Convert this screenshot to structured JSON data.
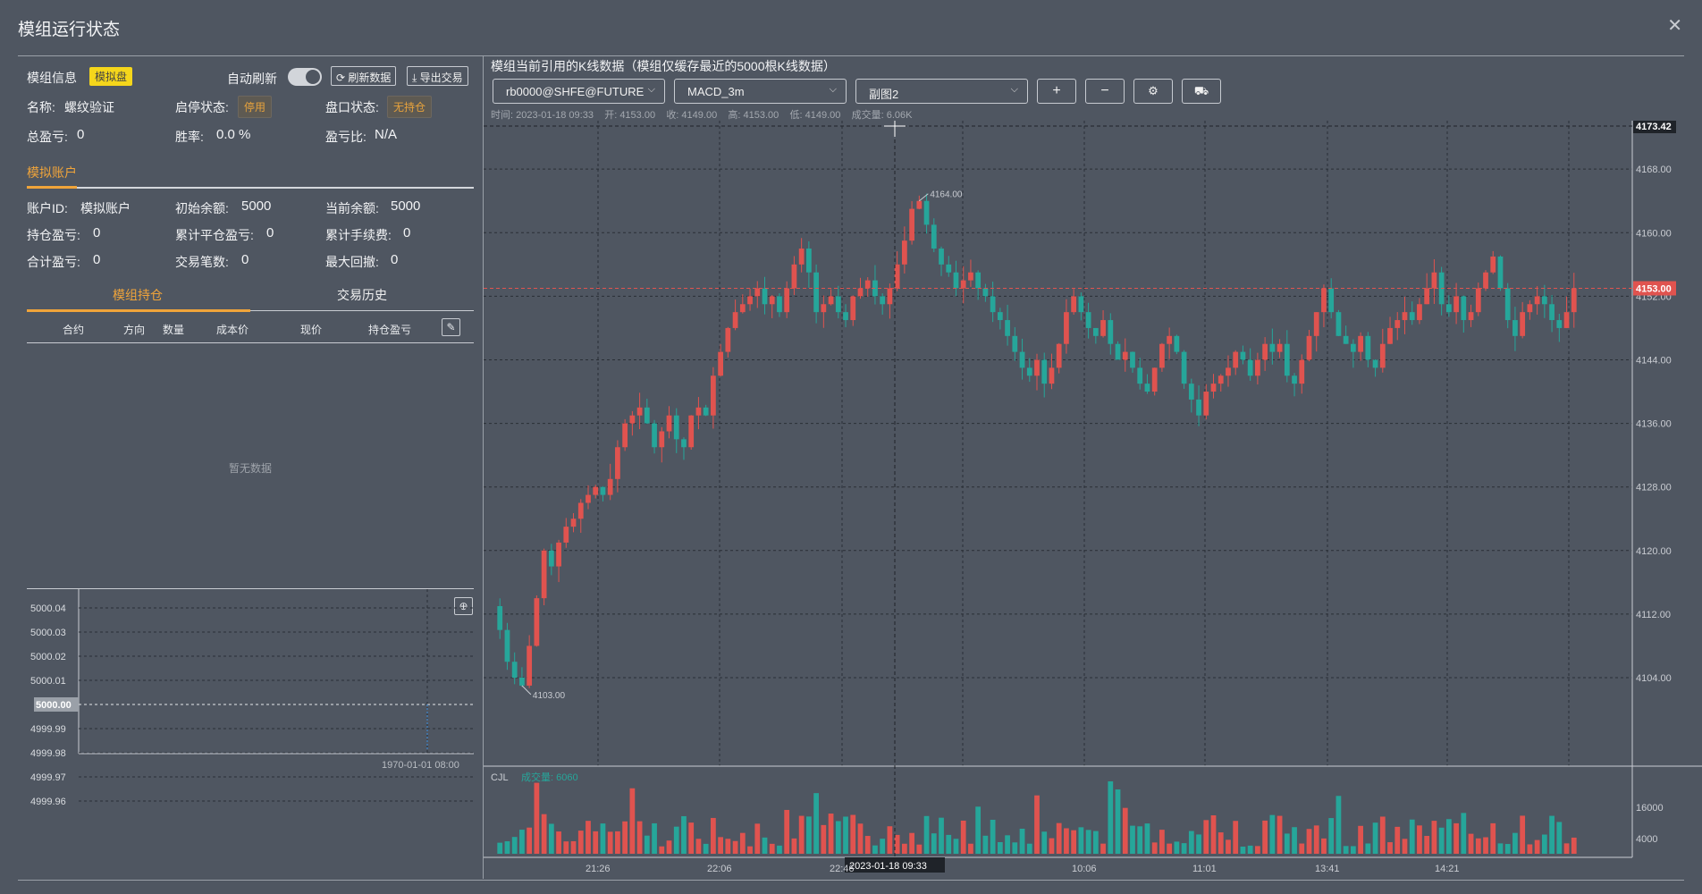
{
  "title": "模组运行状态",
  "module_info": {
    "label": "模组信息",
    "mode_badge": "模拟盘",
    "auto_refresh_label": "自动刷新",
    "refresh_btn": "刷新数据",
    "export_btn": "导出交易",
    "name_label": "名称:",
    "name_value": "螺纹验证",
    "start_stop_label": "启停状态:",
    "start_stop_value": "停用",
    "market_label": "盘口状态:",
    "market_value": "无持仓",
    "total_pnl_label": "总盈亏:",
    "total_pnl_value": "0",
    "winrate_label": "胜率:",
    "winrate_value": "0.0 %",
    "pnl_ratio_label": "盈亏比:",
    "pnl_ratio_value": "N/A"
  },
  "account": {
    "tab": "模拟账户",
    "id_label": "账户ID:",
    "id_value": "模拟账户",
    "init_label": "初始余额:",
    "init_value": "5000",
    "cur_label": "当前余额:",
    "cur_value": "5000",
    "pos_pnl_label": "持仓盈亏:",
    "pos_pnl_value": "0",
    "close_pnl_label": "累计平仓盈亏:",
    "close_pnl_value": "0",
    "fee_label": "累计手续费:",
    "fee_value": "0",
    "sum_pnl_label": "合计盈亏:",
    "sum_pnl_value": "0",
    "trades_label": "交易笔数:",
    "trades_value": "0",
    "drawdown_label": "最大回撤:",
    "drawdown_value": "0"
  },
  "tabs": {
    "positions": "模组持仓",
    "history": "交易历史"
  },
  "table": {
    "headers": [
      "合约",
      "方向",
      "数量",
      "成本价",
      "现价",
      "持仓盈亏"
    ],
    "empty": "暂无数据"
  },
  "equity_chart": {
    "y_ticks": [
      "5000.04",
      "5000.03",
      "5000.02",
      "5000.01",
      "5000.00",
      "4999.99",
      "4999.98",
      "4999.97",
      "4999.96"
    ],
    "current_label": "5000.00",
    "x_label": "1970-01-01 08:00"
  },
  "kline": {
    "title": "模组当前引用的K线数据（模组仅缓存最近的5000根K线数据）",
    "symbol": "rb0000@SHFE@FUTURES",
    "indicator": "MACD_3m",
    "sub": "副图2",
    "btn_add": "+",
    "btn_sub": "−",
    "info": {
      "time": "时间: 2023-01-18 09:33",
      "open": "开: 4153.00",
      "close": "收: 4149.00",
      "high": "高: 4153.00",
      "low": "低: 4149.00",
      "vol": "成交量: 6.06K"
    },
    "cross_price": "4173.42",
    "last_price": "4153.00",
    "max_label": "4164.00",
    "min_label": "4103.00",
    "cross_time": "2023-01-18 09:33",
    "vol_name": "CJL",
    "vol_label": "成交量: 6060",
    "vol_ticks": [
      "16000",
      "4000"
    ],
    "x_ticks": [
      "21:26",
      "22:06",
      "22:46",
      "10:06",
      "11:01",
      "13:41",
      "14:21"
    ]
  },
  "chart_data": {
    "type": "candlestick",
    "price_ticks": [
      4168,
      4160,
      4152,
      4144,
      4136,
      4128,
      4120,
      4112,
      4104
    ],
    "ylim": [
      4096,
      4175.5
    ],
    "last": 4153,
    "high": 4164,
    "low": 4103,
    "crosshair": 4173.42,
    "volume_ticks": [
      16000,
      4000
    ],
    "path": [
      4113,
      4110,
      4106,
      4104,
      4103,
      4108,
      4114,
      4120,
      4118,
      4121,
      4123,
      4124,
      4126,
      4127,
      4128,
      4127,
      4129,
      4133,
      4136,
      4137,
      4138,
      4136,
      4133,
      4135,
      4137,
      4134,
      4133,
      4137,
      4138,
      4137,
      4142,
      4145,
      4148,
      4150,
      4151,
      4152,
      4153,
      4151,
      4152,
      4150,
      4153,
      4156,
      4158,
      4155,
      4150,
      4151,
      4152,
      4150,
      4149,
      4152,
      4153,
      4154,
      4152,
      4151,
      4153,
      4156,
      4159,
      4163,
      4164,
      4161,
      4158,
      4156,
      4155,
      4153,
      4154,
      4155,
      4153,
      4152,
      4150,
      4149,
      4147,
      4145,
      4143,
      4142,
      4144,
      4141,
      4143,
      4146,
      4150,
      4152,
      4150,
      4148,
      4147,
      4149,
      4146,
      4144,
      4145,
      4143,
      4141,
      4140,
      4143,
      4146,
      4147,
      4145,
      4141,
      4139,
      4137,
      4140,
      4141,
      4142,
      4143,
      4145,
      4144,
      4142,
      4144,
      4146,
      4145,
      4146,
      4142,
      4141,
      4144,
      4147,
      4150,
      4153,
      4150,
      4147,
      4146,
      4145,
      4147,
      4144,
      4143,
      4146,
      4148,
      4149,
      4150,
      4149,
      4151,
      4153,
      4155,
      4151,
      4150,
      4152,
      4149,
      4150,
      4153,
      4155,
      4157,
      4153,
      4149,
      4147,
      4150,
      4151,
      4152,
      4151,
      4149,
      4148,
      4150,
      4153
    ]
  }
}
